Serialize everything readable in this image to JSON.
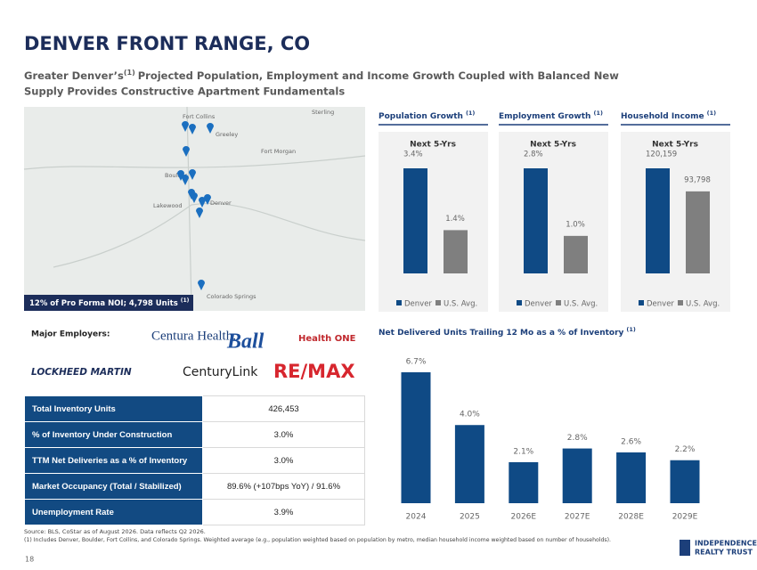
{
  "title": "DENVER FRONT RANGE, CO",
  "subtitle": {
    "lead": "Greater Denver’s",
    "note": "(1)",
    "line1": "Projected Population, Employment and Income Growth Coupled with Balanced New",
    "line2": "Supply Provides Constructive Apartment Fundamentals"
  },
  "map": {
    "labels": [
      "Sterling",
      "Fort Collins",
      "Greeley",
      "Fort Morgan",
      "Boulder",
      "Lakewood",
      "Denver",
      "Colorado Springs"
    ],
    "caption": "12% of Pro Forma NOI; 4,798 Units",
    "caption_note": "(1)"
  },
  "employers": {
    "label": "Major Employers:",
    "logos": [
      "Centura Health.",
      "Ball",
      "Health ONE",
      "LOCKHEED MARTIN",
      "CenturyLink",
      "RE/MAX"
    ]
  },
  "chart_data": [
    {
      "type": "bar",
      "title": "Population Growth",
      "title_note": "(1)",
      "subtitle": "Next 5-Yrs",
      "series": [
        {
          "name": "Denver",
          "color": "#0f4a85",
          "values": [
            3.4
          ],
          "value_labels": [
            "3.4%"
          ]
        },
        {
          "name": "U.S. Avg.",
          "color": "#7f7f7f",
          "values": [
            1.4
          ],
          "value_labels": [
            "1.4%"
          ]
        }
      ]
    },
    {
      "type": "bar",
      "title": "Employment Growth",
      "title_note": "(1)",
      "subtitle": "Next 5-Yrs",
      "series": [
        {
          "name": "Denver",
          "color": "#0f4a85",
          "values": [
            2.8
          ],
          "value_labels": [
            "2.8%"
          ]
        },
        {
          "name": "U.S. Avg.",
          "color": "#7f7f7f",
          "values": [
            1.0
          ],
          "value_labels": [
            "1.0%"
          ]
        }
      ]
    },
    {
      "type": "bar",
      "title": "Household Income",
      "title_note": "(1)",
      "subtitle": "Next 5-Yrs",
      "series": [
        {
          "name": "Denver",
          "color": "#0f4a85",
          "values": [
            120159
          ],
          "value_labels": [
            "120,159"
          ]
        },
        {
          "name": "U.S. Avg.",
          "color": "#7f7f7f",
          "values": [
            93798
          ],
          "value_labels": [
            "93,798"
          ]
        }
      ]
    },
    {
      "type": "bar",
      "title": "Net Delivered Units Trailing 12 Mo as a % of Inventory",
      "title_note": "(1)",
      "categories": [
        "2024",
        "2025",
        "2026E",
        "2027E",
        "2028E",
        "2029E"
      ],
      "values": [
        6.7,
        4.0,
        2.1,
        2.8,
        2.6,
        2.2
      ],
      "value_labels": [
        "6.7%",
        "4.0%",
        "2.1%",
        "2.8%",
        "2.6%",
        "2.2%"
      ],
      "color": "#0f4a85"
    }
  ],
  "table": {
    "rows": [
      [
        "Total Inventory Units",
        "426,453"
      ],
      [
        "% of Inventory Under Construction",
        "3.0%"
      ],
      [
        "TTM Net Deliveries as a % of Inventory",
        "3.0%"
      ],
      [
        "Market Occupancy (Total / Stabilized)",
        "89.6% (+107bps YoY) / 91.6%"
      ],
      [
        "Unemployment Rate",
        "3.9%"
      ]
    ]
  },
  "footer": {
    "source": "Source: BLS, CoStar as of August 2026. Data reflects Q2 2026.",
    "note": "(1) Includes Denver, Boulder, Fort Collins, and Colorado Springs. Weighted average (e.g., population weighted based on population by metro, median household income weighted based on number of households).",
    "page": "18",
    "logo": [
      "INDEPENDENCE",
      "REALTY TRUST"
    ]
  }
}
